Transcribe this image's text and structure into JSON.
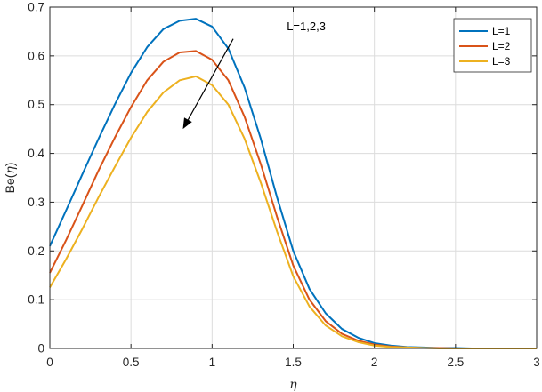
{
  "chart_data": {
    "type": "line",
    "title": "",
    "xlabel": "η",
    "ylabel_prefix": "Be(",
    "ylabel_var": "η",
    "ylabel_suffix": ")",
    "xlim": [
      0,
      3
    ],
    "ylim": [
      0,
      0.7
    ],
    "xticks": [
      0,
      0.5,
      1,
      1.5,
      2,
      2.5,
      3
    ],
    "xtick_labels": [
      "0",
      "0.5",
      "1",
      "1.5",
      "2",
      "2.5",
      "3"
    ],
    "yticks": [
      0,
      0.1,
      0.2,
      0.3,
      0.4,
      0.5,
      0.6,
      0.7
    ],
    "ytick_labels": [
      "0",
      "0.1",
      "0.2",
      "0.3",
      "0.4",
      "0.5",
      "0.6",
      "0.7"
    ],
    "grid": true,
    "legend_position": "top-right",
    "x": [
      0,
      0.1,
      0.2,
      0.3,
      0.4,
      0.5,
      0.6,
      0.7,
      0.8,
      0.9,
      1.0,
      1.1,
      1.2,
      1.3,
      1.4,
      1.5,
      1.6,
      1.7,
      1.8,
      1.9,
      2.0,
      2.1,
      2.2,
      2.3,
      2.4,
      2.5,
      2.6,
      2.7,
      2.8,
      2.9,
      3.0
    ],
    "series": [
      {
        "name": "L=1",
        "color": "#0072BD",
        "values": [
          0.21,
          0.283,
          0.357,
          0.43,
          0.5,
          0.565,
          0.618,
          0.655,
          0.672,
          0.676,
          0.66,
          0.615,
          0.535,
          0.43,
          0.31,
          0.2,
          0.122,
          0.072,
          0.04,
          0.022,
          0.011,
          0.006,
          0.003,
          0.002,
          0.001,
          0.001,
          0.0,
          0.0,
          0.0,
          0.0,
          0.0
        ]
      },
      {
        "name": "L=2",
        "color": "#D95319",
        "values": [
          0.155,
          0.222,
          0.293,
          0.365,
          0.432,
          0.495,
          0.55,
          0.588,
          0.607,
          0.61,
          0.592,
          0.55,
          0.475,
          0.378,
          0.27,
          0.17,
          0.1,
          0.056,
          0.03,
          0.016,
          0.008,
          0.004,
          0.002,
          0.001,
          0.001,
          0.0,
          0.0,
          0.0,
          0.0,
          0.0,
          0.0
        ]
      },
      {
        "name": "L=3",
        "color": "#EDB120",
        "values": [
          0.125,
          0.183,
          0.245,
          0.31,
          0.372,
          0.432,
          0.485,
          0.525,
          0.55,
          0.558,
          0.54,
          0.5,
          0.43,
          0.34,
          0.24,
          0.148,
          0.086,
          0.047,
          0.025,
          0.013,
          0.006,
          0.003,
          0.002,
          0.001,
          0.0,
          0.0,
          0.0,
          0.0,
          0.0,
          0.0,
          0.0
        ]
      }
    ],
    "annotation": {
      "text": "L=1,2,3",
      "text_x": 1.58,
      "text_y": 0.66,
      "arrow_from": [
        1.13,
        0.635
      ],
      "arrow_to": [
        0.82,
        0.45
      ]
    }
  }
}
